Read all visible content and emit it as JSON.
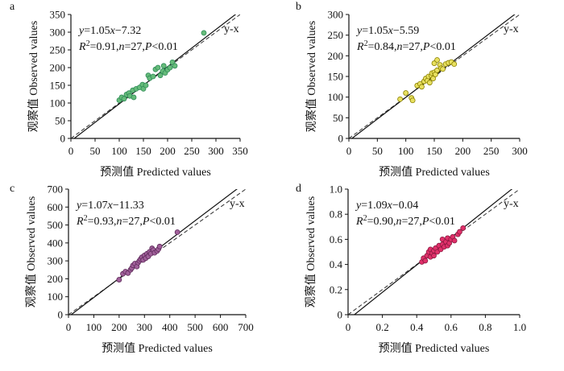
{
  "chart_data": [
    {
      "type": "scatter",
      "panel_label": "a",
      "xlabel": "预测值  Predicted values",
      "ylabel": "观察值  Observed values",
      "xlim": [
        0,
        350
      ],
      "ylim": [
        0,
        350
      ],
      "xticks": [
        "0",
        "50",
        "100",
        "150",
        "200",
        "250",
        "300",
        "350"
      ],
      "yticks": [
        "0",
        "50",
        "100",
        "150",
        "200",
        "250",
        "300",
        "350"
      ],
      "equation": {
        "y": "y",
        "eq": "=1.05",
        "x": "x",
        "rest": "−7.32"
      },
      "stats": {
        "r": "R",
        "sup": "2",
        "r2": "=0.91,",
        "n": "n",
        "neq": "=27,",
        "p": "P",
        "plt": "<0.01"
      },
      "ref_label": "y-x",
      "fit": {
        "slope": 1.05,
        "intercept": -7.32
      },
      "marker": {
        "fill": "#66bb7a",
        "stroke": "#2e8b57"
      },
      "points": [
        [
          100,
          108
        ],
        [
          105,
          116
        ],
        [
          110,
          112
        ],
        [
          115,
          124
        ],
        [
          120,
          128
        ],
        [
          122,
          120
        ],
        [
          128,
          136
        ],
        [
          130,
          116
        ],
        [
          135,
          140
        ],
        [
          142,
          144
        ],
        [
          148,
          152
        ],
        [
          150,
          140
        ],
        [
          155,
          150
        ],
        [
          160,
          178
        ],
        [
          163,
          170
        ],
        [
          170,
          175
        ],
        [
          175,
          195
        ],
        [
          180,
          200
        ],
        [
          185,
          178
        ],
        [
          190,
          190
        ],
        [
          192,
          205
        ],
        [
          195,
          185
        ],
        [
          200,
          194
        ],
        [
          205,
          200
        ],
        [
          210,
          215
        ],
        [
          215,
          205
        ],
        [
          275,
          298
        ]
      ]
    },
    {
      "type": "scatter",
      "panel_label": "b",
      "xlabel": "预测值  Predicted values",
      "ylabel": "观察值  Observed values",
      "xlim": [
        0,
        300
      ],
      "ylim": [
        0,
        300
      ],
      "xticks": [
        "0",
        "50",
        "100",
        "150",
        "200",
        "250",
        "300"
      ],
      "yticks": [
        "0",
        "50",
        "100",
        "150",
        "200",
        "250",
        "300"
      ],
      "equation": {
        "y": "y",
        "eq": "=1.05",
        "x": "x",
        "rest": "−5.59"
      },
      "stats": {
        "r": "R",
        "sup": "2",
        "r2": "=0.84,",
        "n": "n",
        "neq": "=27,",
        "p": "P",
        "plt": "<0.01"
      },
      "ref_label": "y-x",
      "fit": {
        "slope": 1.05,
        "intercept": -5.59
      },
      "marker": {
        "fill": "#e8e060",
        "stroke": "#8a8000"
      },
      "points": [
        [
          90,
          95
        ],
        [
          100,
          110
        ],
        [
          110,
          98
        ],
        [
          112,
          92
        ],
        [
          120,
          128
        ],
        [
          125,
          132
        ],
        [
          128,
          125
        ],
        [
          132,
          138
        ],
        [
          135,
          145
        ],
        [
          138,
          140
        ],
        [
          140,
          150
        ],
        [
          142,
          135
        ],
        [
          145,
          152
        ],
        [
          146,
          158
        ],
        [
          148,
          145
        ],
        [
          150,
          182
        ],
        [
          150,
          160
        ],
        [
          152,
          155
        ],
        [
          155,
          165
        ],
        [
          155,
          190
        ],
        [
          160,
          178
        ],
        [
          162,
          170
        ],
        [
          165,
          168
        ],
        [
          170,
          180
        ],
        [
          175,
          183
        ],
        [
          180,
          185
        ],
        [
          185,
          180
        ]
      ]
    },
    {
      "type": "scatter",
      "panel_label": "c",
      "xlabel": "预测值  Predicted values",
      "ylabel": "观察值  Observed values",
      "xlim": [
        0,
        700
      ],
      "ylim": [
        0,
        700
      ],
      "xticks": [
        "0",
        "100",
        "200",
        "300",
        "400",
        "500",
        "600",
        "700"
      ],
      "yticks": [
        "0",
        "100",
        "200",
        "300",
        "400",
        "500",
        "600",
        "700"
      ],
      "equation": {
        "y": "y",
        "eq": "=1.07",
        "x": "x",
        "rest": "−11.33"
      },
      "stats": {
        "r": "R",
        "sup": "2",
        "r2": "=0.93,",
        "n": "n",
        "neq": "=27,",
        "p": "P",
        "plt": "<0.01"
      },
      "ref_label": "y-x",
      "fit": {
        "slope": 1.07,
        "intercept": -11.33
      },
      "marker": {
        "fill": "#a0609a",
        "stroke": "#5e2a5a"
      },
      "points": [
        [
          200,
          195
        ],
        [
          215,
          228
        ],
        [
          225,
          240
        ],
        [
          235,
          232
        ],
        [
          245,
          250
        ],
        [
          250,
          260
        ],
        [
          255,
          275
        ],
        [
          262,
          285
        ],
        [
          270,
          268
        ],
        [
          275,
          290
        ],
        [
          280,
          300
        ],
        [
          285,
          310
        ],
        [
          290,
          320
        ],
        [
          295,
          305
        ],
        [
          300,
          330
        ],
        [
          305,
          315
        ],
        [
          310,
          340
        ],
        [
          315,
          325
        ],
        [
          320,
          350
        ],
        [
          325,
          340
        ],
        [
          330,
          370
        ],
        [
          335,
          360
        ],
        [
          340,
          345
        ],
        [
          350,
          355
        ],
        [
          355,
          365
        ],
        [
          360,
          380
        ],
        [
          430,
          460
        ]
      ]
    },
    {
      "type": "scatter",
      "panel_label": "d",
      "xlabel": "预测值  Predicted values",
      "ylabel": "观察值  Observed values",
      "xlim": [
        0,
        1.0
      ],
      "ylim": [
        0,
        1.0
      ],
      "xticks": [
        "0",
        "0.2",
        "0.4",
        "0.6",
        "0.8",
        "1.0"
      ],
      "yticks": [
        "0",
        "0.2",
        "0.4",
        "0.6",
        "0.8",
        "1.0"
      ],
      "equation": {
        "y": "y",
        "eq": "=1.09",
        "x": "x",
        "rest": "−0.04"
      },
      "stats": {
        "r": "R",
        "sup": "2",
        "r2": "=0.90,",
        "n": "n",
        "neq": "=27,",
        "p": "P",
        "plt": "<0.01"
      },
      "ref_label": "y-x",
      "fit": {
        "slope": 1.09,
        "intercept": -0.04
      },
      "marker": {
        "fill": "#e0306a",
        "stroke": "#8a1a40"
      },
      "points": [
        [
          0.43,
          0.42
        ],
        [
          0.44,
          0.45
        ],
        [
          0.45,
          0.43
        ],
        [
          0.46,
          0.47
        ],
        [
          0.47,
          0.5
        ],
        [
          0.48,
          0.46
        ],
        [
          0.48,
          0.52
        ],
        [
          0.49,
          0.49
        ],
        [
          0.5,
          0.51
        ],
        [
          0.5,
          0.47
        ],
        [
          0.51,
          0.53
        ],
        [
          0.52,
          0.5
        ],
        [
          0.53,
          0.55
        ],
        [
          0.54,
          0.52
        ],
        [
          0.55,
          0.56
        ],
        [
          0.55,
          0.6
        ],
        [
          0.56,
          0.54
        ],
        [
          0.57,
          0.58
        ],
        [
          0.58,
          0.55
        ],
        [
          0.58,
          0.61
        ],
        [
          0.59,
          0.57
        ],
        [
          0.6,
          0.6
        ],
        [
          0.61,
          0.62
        ],
        [
          0.62,
          0.59
        ],
        [
          0.64,
          0.64
        ],
        [
          0.65,
          0.66
        ],
        [
          0.67,
          0.69
        ]
      ]
    }
  ]
}
